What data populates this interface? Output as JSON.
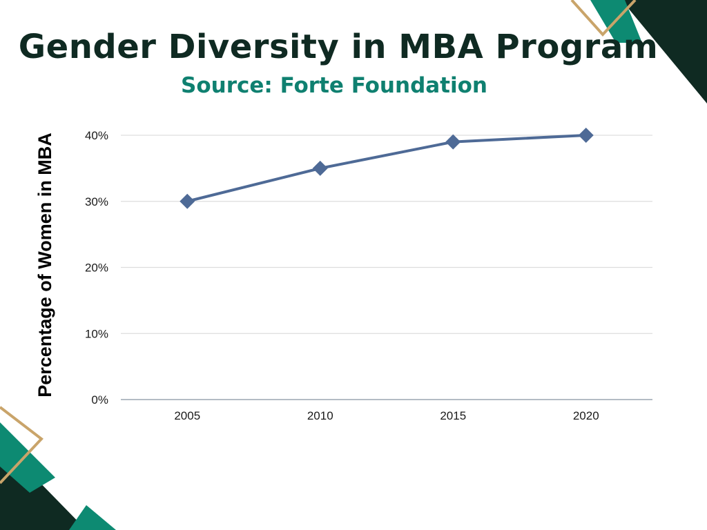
{
  "colors": {
    "title": "#0f2a22",
    "subtitle": "#0f8070",
    "line": "#4e6a96",
    "grid": "#dddddd",
    "axis": "#9aa5b0",
    "tick": "#1a1a1a",
    "deco_dark": "#0f2a22",
    "deco_teal": "#0d8a72",
    "deco_gold": "#c9a46a"
  },
  "chart_data": {
    "type": "line",
    "title": "Gender Diversity in MBA Program",
    "subtitle": "Source: Forte Foundation",
    "xlabel": "",
    "ylabel": "Percentage of Women in MBA",
    "categories": [
      "2005",
      "2010",
      "2015",
      "2020"
    ],
    "series": [
      {
        "values": [
          30,
          35,
          39,
          40
        ],
        "marker": "diamond"
      }
    ],
    "y_ticks": [
      0,
      10,
      20,
      30,
      40
    ],
    "y_tick_labels": [
      "0%",
      "10%",
      "20%",
      "30%",
      "40%"
    ],
    "ylim": [
      0,
      40
    ],
    "grid": true,
    "legend": "none"
  }
}
